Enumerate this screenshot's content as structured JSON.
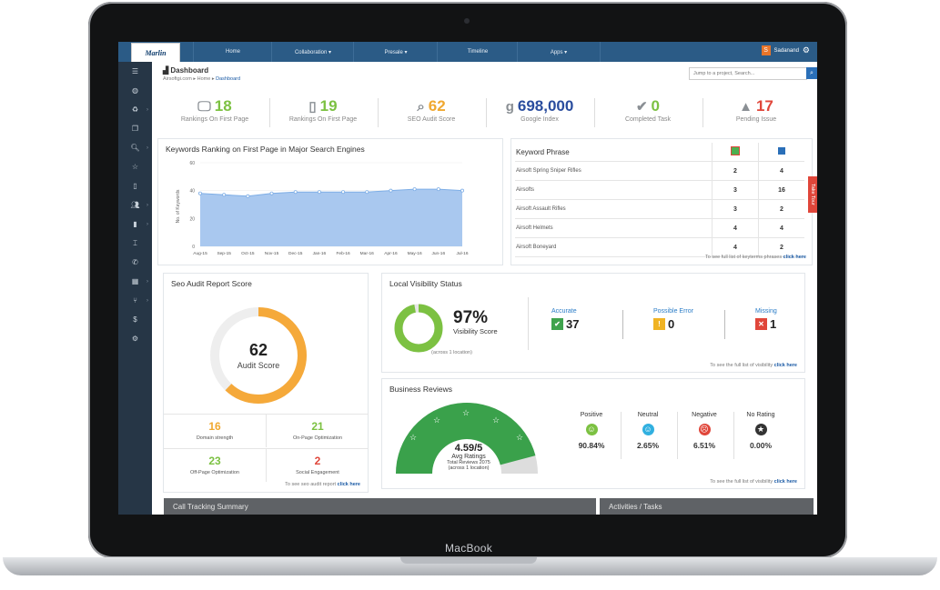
{
  "device": {
    "brand": "MacBook"
  },
  "topbar": {
    "logo": "Marlin",
    "nav": [
      "Home",
      "Collaboration ▾",
      "Presale ▾",
      "Timeline",
      "Apps ▾"
    ],
    "user_initial": "S",
    "user_name": "Sadanand"
  },
  "header": {
    "title": "Dashboard",
    "breadcrumb": [
      "Airsoftgi.com",
      "Home",
      "Dashboard"
    ],
    "search_placeholder": "Jump to a project, Search..."
  },
  "stats": [
    {
      "value": "18",
      "label": "Rankings On First Page",
      "color": "#7cc142",
      "icon": "monitor-icon"
    },
    {
      "value": "19",
      "label": "Rankings On First Page",
      "color": "#7cc142",
      "icon": "mobile-icon"
    },
    {
      "value": "62",
      "label": "SEO Audit Score",
      "color": "#f0a830",
      "icon": "magnifier-icon"
    },
    {
      "value": "698,000",
      "label": "Google Index",
      "color": "#2a4d9e",
      "icon": "google-g-icon"
    },
    {
      "value": "0",
      "label": "Completed Task",
      "color": "#7cc142",
      "icon": "checkmark-icon"
    },
    {
      "value": "17",
      "label": "Pending Issue",
      "color": "#e0463a",
      "icon": "warning-icon"
    }
  ],
  "ranking": {
    "title": "Keywords Ranking on First Page in Major Search Engines",
    "chart_data": {
      "type": "area",
      "x": [
        "Aug-15",
        "Sep-15",
        "Oct-15",
        "Nov-15",
        "Dec-15",
        "Jan-16",
        "Feb-16",
        "Mar-16",
        "Apr-16",
        "May-16",
        "Jun-16",
        "Jul-16"
      ],
      "values": [
        38,
        37,
        36,
        38,
        39,
        39,
        39,
        39,
        40,
        41,
        41,
        40
      ],
      "ylabel": "No. of Keywords",
      "yticks": [
        "60",
        "40",
        "20",
        "0"
      ],
      "ylim": [
        0,
        60
      ],
      "color": "#a9c8ef"
    }
  },
  "keywords": {
    "title": "Keyword Phrase",
    "rows": [
      {
        "phrase": "Airsoft Spring Sniper Rifles",
        "google": "2",
        "bing": "4"
      },
      {
        "phrase": "Airsofts",
        "google": "3",
        "bing": "16"
      },
      {
        "phrase": "Airsoft Assault Rifles",
        "google": "3",
        "bing": "2"
      },
      {
        "phrase": "Airsoft Helmets",
        "google": "4",
        "bing": "4"
      },
      {
        "phrase": "Airsoft Boneyard",
        "google": "4",
        "bing": "2"
      }
    ],
    "footer": "To see full list of keyterms phrases",
    "footer_link": "click here"
  },
  "side_tab": "Take Tour",
  "audit": {
    "title": "Seo Audit Report Score",
    "score": "62",
    "score_label": "Audit Score",
    "score_fraction": 0.62,
    "items": [
      {
        "value": "16",
        "label": "Domain strength",
        "color": "#f0a830"
      },
      {
        "value": "21",
        "label": "On-Page Optimization",
        "color": "#7cc142"
      },
      {
        "value": "23",
        "label": "Off-Page Optimization",
        "color": "#7cc142"
      },
      {
        "value": "2",
        "label": "Social Engagement",
        "color": "#e0463a"
      }
    ],
    "footer": "To see seo audit report",
    "footer_link": "click here"
  },
  "visibility": {
    "title": "Local Visibility Status",
    "percent": "97%",
    "label": "Visibility Score",
    "sub": "(across 1 location)",
    "fraction": 0.97,
    "statuses": [
      {
        "label": "Accurate",
        "value": "37",
        "color": "#3fa34d",
        "icon": "check-icon"
      },
      {
        "label": "Possible Error",
        "value": "0",
        "color": "#f0b323",
        "icon": "warning-icon"
      },
      {
        "label": "Missing",
        "value": "1",
        "color": "#e0463a",
        "icon": "x-icon"
      }
    ],
    "footer": "To see the full list of visibility",
    "footer_link": "click here"
  },
  "reviews": {
    "title": "Business Reviews",
    "rating": "4.59/5",
    "rating_label": "Avg Ratings",
    "total": "Total Reviews 2075",
    "sub": "(across 1 location)",
    "rating_fraction": 0.918,
    "breakdown": [
      {
        "label": "Positive",
        "value": "90.84%",
        "color": "#7cc142",
        "icon": "smile-icon"
      },
      {
        "label": "Neutral",
        "value": "2.65%",
        "color": "#31b0e0",
        "icon": "neutral-face-icon"
      },
      {
        "label": "Negative",
        "value": "6.51%",
        "color": "#e0463a",
        "icon": "sad-face-icon"
      },
      {
        "label": "No Rating",
        "value": "0.00%",
        "color": "#333333",
        "icon": "star-icon"
      }
    ],
    "footer": "To see the full list of visibility",
    "footer_link": "click here"
  },
  "bottom_panels": [
    "Call Tracking Summary",
    "Activities / Tasks"
  ]
}
